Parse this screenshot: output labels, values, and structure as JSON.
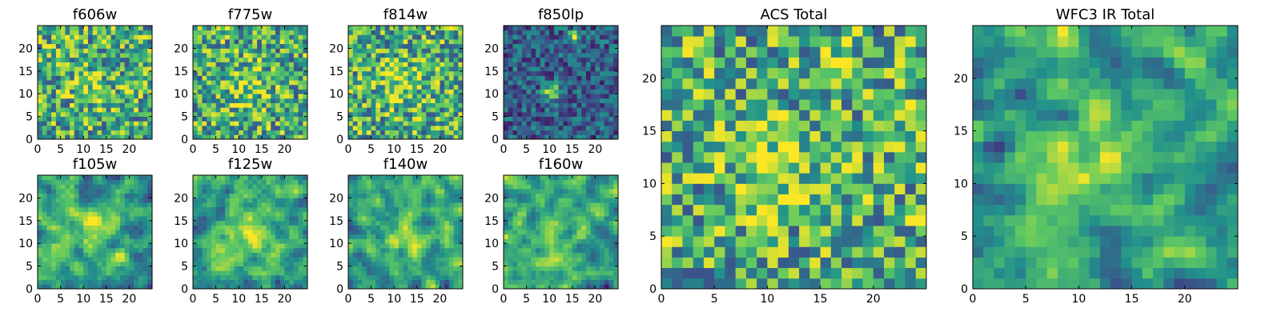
{
  "chart_data": {
    "type": "heatmap",
    "colormap": [
      "#440154",
      "#3b528b",
      "#21918c",
      "#5ec962",
      "#fde725"
    ],
    "x": {
      "range": [
        0,
        25
      ],
      "ticks": [
        0,
        5,
        10,
        15,
        20
      ]
    },
    "y": {
      "range": [
        0,
        25
      ],
      "ticks": [
        0,
        5,
        10,
        15,
        20
      ]
    },
    "panels": [
      {
        "id": "f606w",
        "title": "f606w",
        "grid": [
          25,
          25
        ],
        "style": "noise",
        "seed": 11,
        "blobs": [
          {
            "x": 11,
            "y": 11,
            "amp": 0.18,
            "sigma": 3
          }
        ]
      },
      {
        "id": "f775w",
        "title": "f775w",
        "grid": [
          25,
          25
        ],
        "style": "noise",
        "seed": 23,
        "blobs": [
          {
            "x": 11,
            "y": 11,
            "amp": 0.22,
            "sigma": 3.5
          }
        ]
      },
      {
        "id": "f814w",
        "title": "f814w",
        "grid": [
          25,
          25
        ],
        "style": "noise",
        "seed": 37,
        "blobs": [
          {
            "x": 11,
            "y": 12,
            "amp": 0.22,
            "sigma": 3.5
          }
        ]
      },
      {
        "id": "f850lp",
        "title": "f850lp",
        "grid": [
          25,
          25
        ],
        "style": "dark",
        "seed": 41,
        "blobs": [
          {
            "x": 10,
            "y": 10,
            "amp": 0.6,
            "sigma": 1.2
          },
          {
            "x": 15,
            "y": 22,
            "amp": 0.6,
            "sigma": 1.0
          }
        ]
      },
      {
        "id": "f105w",
        "title": "f105w",
        "grid": [
          25,
          25
        ],
        "style": "smooth",
        "seed": 53,
        "blobs": [
          {
            "x": 12,
            "y": 13,
            "amp": 0.28,
            "sigma": 3
          }
        ]
      },
      {
        "id": "f125w",
        "title": "f125w",
        "grid": [
          25,
          25
        ],
        "style": "smooth",
        "seed": 67,
        "blobs": [
          {
            "x": 11,
            "y": 12,
            "amp": 0.3,
            "sigma": 4
          }
        ]
      },
      {
        "id": "f140w",
        "title": "f140w",
        "grid": [
          25,
          25
        ],
        "style": "smooth",
        "seed": 79,
        "blobs": [
          {
            "x": 12,
            "y": 11,
            "amp": 0.28,
            "sigma": 3.5
          }
        ]
      },
      {
        "id": "f160w",
        "title": "f160w",
        "grid": [
          25,
          25
        ],
        "style": "smooth",
        "seed": 83,
        "blobs": [
          {
            "x": 12,
            "y": 10,
            "amp": 0.3,
            "sigma": 3.5
          }
        ]
      },
      {
        "id": "acs-total",
        "title": "ACS Total",
        "grid": [
          25,
          25
        ],
        "style": "noise",
        "seed": 97,
        "blobs": [
          {
            "x": 10,
            "y": 11,
            "amp": 0.3,
            "sigma": 2.5
          },
          {
            "x": 16,
            "y": 21,
            "amp": 0.2,
            "sigma": 1.5
          }
        ]
      },
      {
        "id": "wfc3-ir-total",
        "title": "WFC3 IR Total",
        "grid": [
          25,
          25
        ],
        "style": "smooth",
        "seed": 101,
        "blobs": [
          {
            "x": 12,
            "y": 12,
            "amp": 0.35,
            "sigma": 2.8
          },
          {
            "x": 2,
            "y": 13,
            "amp": -0.45,
            "sigma": 1.2
          }
        ]
      }
    ]
  }
}
